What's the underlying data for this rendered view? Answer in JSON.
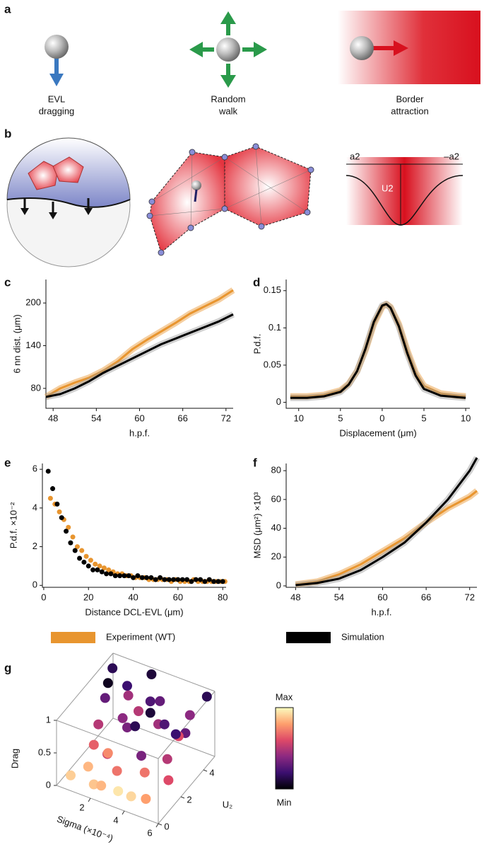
{
  "panel_labels": [
    "a",
    "b",
    "c",
    "d",
    "e",
    "f",
    "g"
  ],
  "diagram_a": {
    "items": [
      {
        "lines": [
          "EVL",
          "dragging"
        ]
      },
      {
        "lines": [
          "Random",
          "walk"
        ]
      },
      {
        "lines": [
          "Border",
          "attraction"
        ]
      }
    ]
  },
  "diagram_b": {
    "left_label": "a2",
    "right_label": "–a2",
    "well_label": "U2"
  },
  "chart_data": [
    {
      "type": "line",
      "ylabel": "6 nn dist. (μm)",
      "xlabel": "h.p.f.",
      "x": [
        47,
        49,
        51,
        53,
        55,
        57,
        59,
        61,
        63,
        65,
        67,
        69,
        71,
        73
      ],
      "series": [
        {
          "name": "Experiment (WT)",
          "color": "#e8952f",
          "values": [
            68,
            80,
            88,
            95,
            105,
            118,
            135,
            148,
            160,
            172,
            185,
            195,
            205,
            218
          ]
        },
        {
          "name": "Simulation",
          "color": "#000000",
          "values": [
            68,
            72,
            80,
            90,
            102,
            112,
            122,
            132,
            142,
            150,
            158,
            166,
            174,
            184
          ]
        }
      ],
      "xlim": [
        47,
        73
      ],
      "ylim": [
        52,
        233
      ],
      "xticks": [
        48,
        54,
        60,
        66,
        72
      ],
      "yticks": [
        80,
        140,
        200
      ]
    },
    {
      "type": "line",
      "ylabel": "P.d.f.",
      "xlabel": "Displacement  (μm)",
      "x": [
        -11,
        -9,
        -7,
        -5,
        -4,
        -3,
        -2,
        -1,
        0,
        0.5,
        1,
        2,
        3,
        4,
        5,
        7,
        9,
        10
      ],
      "series": [
        {
          "name": "Experiment (WT)",
          "color": "#e8952f",
          "values": [
            0.008,
            0.008,
            0.01,
            0.016,
            0.025,
            0.042,
            0.07,
            0.105,
            0.128,
            0.132,
            0.128,
            0.105,
            0.07,
            0.04,
            0.022,
            0.012,
            0.009,
            0.008
          ]
        },
        {
          "name": "Simulation",
          "color": "#000000",
          "values": [
            0.006,
            0.006,
            0.008,
            0.014,
            0.024,
            0.042,
            0.072,
            0.108,
            0.13,
            0.132,
            0.127,
            0.102,
            0.066,
            0.036,
            0.018,
            0.009,
            0.007,
            0.006
          ]
        }
      ],
      "xlim": [
        -11.5,
        10.5
      ],
      "ylim": [
        -0.008,
        0.165
      ],
      "xticks": [
        {
          "value": -10,
          "label": "10"
        },
        {
          "value": -5,
          "label": "5"
        },
        0,
        5,
        10
      ],
      "yticks": [
        0,
        0.05,
        {
          "value": 0.1,
          "label": "0.1"
        },
        0.15
      ]
    },
    {
      "type": "scatter",
      "ylabel": "P.d.f. ×10⁻²",
      "xlabel": "Distance DCL-EVL (μm)",
      "series": [
        {
          "name": "Experiment (WT)",
          "color": "#e8952f",
          "x": [
            3,
            5,
            7,
            9,
            11,
            13,
            15,
            17,
            19,
            21,
            23,
            25,
            27,
            29,
            31,
            33,
            35,
            37,
            39,
            41,
            43,
            45,
            47,
            49,
            51,
            53,
            55,
            57,
            59,
            61,
            63,
            65,
            67,
            69,
            71,
            73,
            75,
            77,
            79,
            81
          ],
          "values": [
            4.5,
            4.2,
            3.8,
            3.4,
            3.0,
            2.5,
            2.0,
            1.8,
            1.5,
            1.3,
            1.1,
            1.0,
            0.9,
            0.8,
            0.7,
            0.6,
            0.6,
            0.5,
            0.5,
            0.4,
            0.4,
            0.4,
            0.3,
            0.3,
            0.3,
            0.3,
            0.3,
            0.2,
            0.3,
            0.2,
            0.2,
            0.2,
            0.3,
            0.2,
            0.2,
            0.2,
            0.2,
            0.2,
            0.2,
            0.2
          ]
        },
        {
          "name": "Simulation",
          "color": "#000000",
          "x": [
            2,
            4,
            6,
            8,
            10,
            12,
            14,
            16,
            18,
            20,
            22,
            24,
            26,
            28,
            30,
            32,
            34,
            36,
            38,
            40,
            42,
            44,
            46,
            48,
            50,
            52,
            54,
            56,
            58,
            60,
            62,
            64,
            66,
            68,
            70,
            72,
            74,
            76,
            78,
            80
          ],
          "values": [
            5.9,
            5.0,
            4.2,
            3.5,
            2.8,
            2.2,
            1.8,
            1.4,
            1.2,
            1.0,
            0.8,
            0.8,
            0.7,
            0.6,
            0.6,
            0.5,
            0.5,
            0.5,
            0.5,
            0.4,
            0.5,
            0.4,
            0.4,
            0.4,
            0.3,
            0.4,
            0.3,
            0.3,
            0.3,
            0.3,
            0.3,
            0.3,
            0.2,
            0.3,
            0.3,
            0.2,
            0.3,
            0.2,
            0.2,
            0.2
          ]
        }
      ],
      "xlim": [
        -0.6,
        81.5
      ],
      "ylim": [
        -0.1,
        6.3
      ],
      "xticks": [
        0,
        20,
        40,
        60,
        80
      ],
      "yticks": [
        0,
        2,
        4,
        6
      ]
    },
    {
      "type": "line",
      "ylabel": "MSD (μm²) ×10³",
      "xlabel": "h.p.f.",
      "x": [
        48,
        51,
        54,
        57,
        60,
        63,
        66,
        69,
        72,
        73
      ],
      "series": [
        {
          "name": "Experiment (WT)",
          "color": "#e8952f",
          "values": [
            1,
            3,
            8,
            15,
            24,
            33,
            44,
            54,
            62,
            66
          ]
        },
        {
          "name": "Simulation",
          "color": "#000000",
          "values": [
            0.5,
            2,
            5,
            11,
            20,
            30,
            44,
            60,
            80,
            89
          ]
        }
      ],
      "xlim": [
        46.7,
        73
      ],
      "ylim": [
        -1,
        85
      ],
      "xticks": [
        48,
        54,
        60,
        66,
        72
      ],
      "yticks": [
        0,
        20,
        40,
        60,
        80
      ]
    },
    {
      "type": "scatter3d",
      "xlabel": "Sigma (×10⁻⁴)",
      "ylabel": "U₂",
      "zlabel": "Drag",
      "x": [
        0.5,
        1.2,
        2.0,
        3.1,
        4.2,
        5.0,
        5.8,
        0.8,
        1.9,
        2.7,
        3.6,
        4.5,
        5.4,
        0.3,
        1.5,
        2.4,
        3.3,
        4.8,
        5.6,
        1.0,
        2.2,
        3.0,
        4.0,
        5.2,
        0.6,
        1.7,
        2.9,
        3.8,
        4.6,
        5.5,
        1.3,
        2.5,
        3.5,
        4.4,
        0.9,
        2.1
      ],
      "y": [
        0.5,
        1.0,
        0.3,
        0.8,
        1.5,
        0.4,
        1.2,
        2.5,
        3.0,
        2.2,
        3.6,
        2.8,
        3.3,
        4.5,
        4.0,
        4.8,
        4.2,
        4.6,
        4.9,
        1.8,
        1.2,
        3.8,
        0.6,
        2.0,
        3.4,
        2.0,
        1.0,
        2.6,
        3.9,
        2.3,
        4.4,
        0.2,
        1.7,
        0.9,
        3.2,
        4.1
      ],
      "z": [
        0.1,
        0.2,
        0.15,
        0.05,
        0.3,
        0.2,
        0.4,
        0.5,
        0.6,
        0.7,
        0.55,
        0.8,
        0.65,
        0.9,
        0.85,
        0.95,
        0.75,
        0.6,
        0.9,
        0.35,
        0.45,
        0.8,
        0.1,
        0.5,
        0.7,
        0.25,
        0.3,
        0.95,
        0.4,
        0.85,
        0.6,
        0.2,
        0.9,
        0.7,
        1.0,
        0.5
      ],
      "c": [
        0.9,
        0.85,
        0.88,
        0.95,
        0.7,
        0.8,
        0.6,
        0.5,
        0.4,
        0.35,
        0.45,
        0.25,
        0.3,
        0.15,
        0.2,
        0.1,
        0.3,
        0.4,
        0.15,
        0.65,
        0.55,
        0.25,
        0.92,
        0.5,
        0.3,
        0.75,
        0.7,
        0.1,
        0.6,
        0.2,
        0.45,
        0.85,
        0.15,
        0.35,
        0.05,
        0.5
      ],
      "xlim": [
        0,
        6
      ],
      "ylim": [
        0,
        5
      ],
      "zlim": [
        0,
        1
      ],
      "xticks": [
        2,
        4,
        6
      ],
      "yticks": [
        0,
        2,
        4
      ],
      "zticks": [
        0,
        0.5,
        1
      ],
      "colorbar": {
        "max_label": "Max",
        "min_label": "Min",
        "colors": [
          "#000004",
          "#3b0f70",
          "#8c2981",
          "#de4968",
          "#fe9f6d",
          "#fcfdbf"
        ]
      }
    }
  ]
}
